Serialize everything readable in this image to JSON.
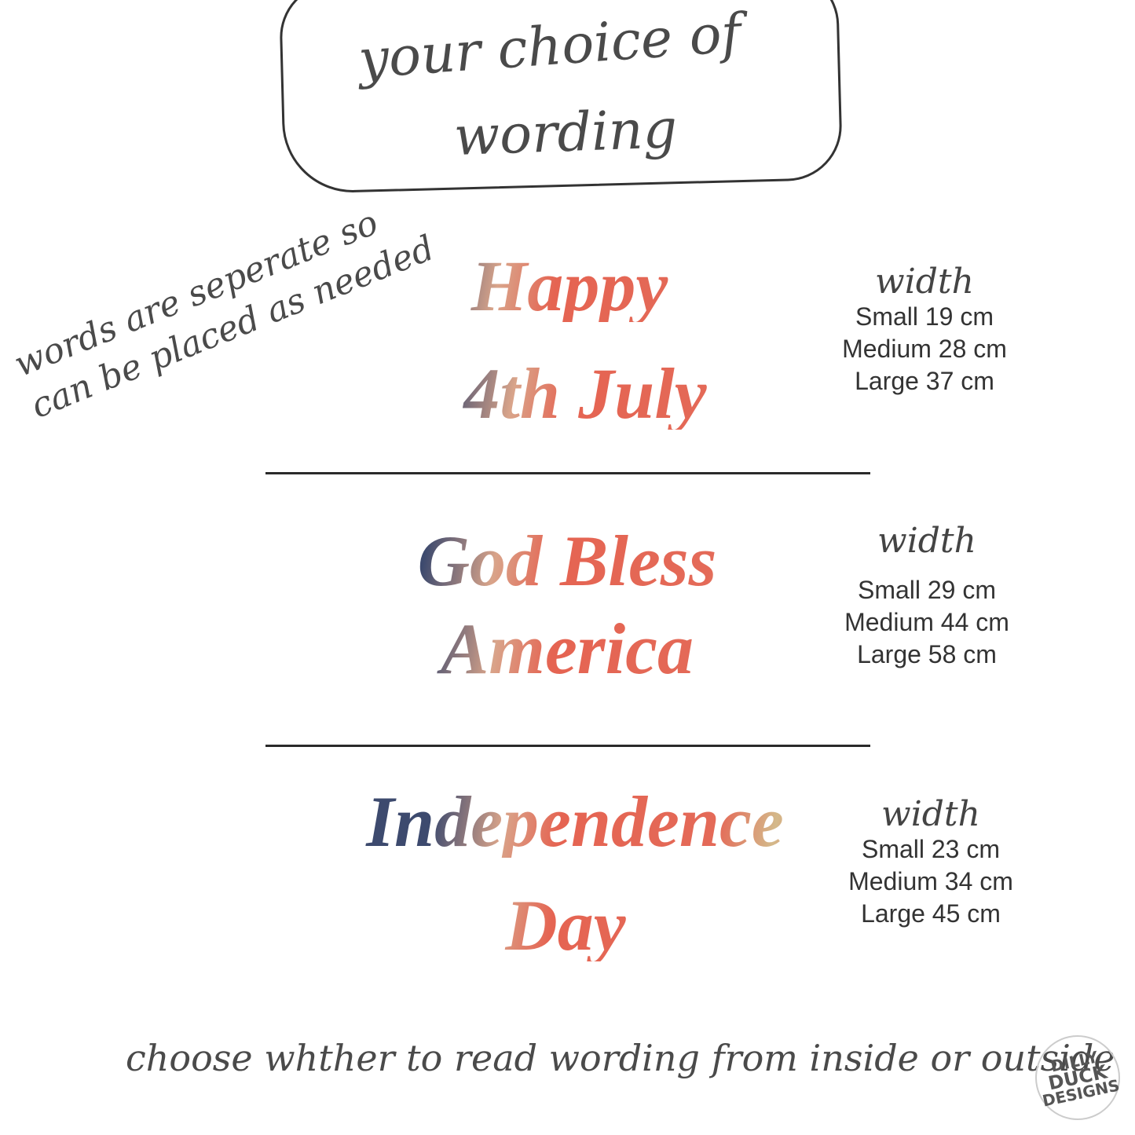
{
  "header": {
    "title_line1": "your choice of",
    "title_line2": "wording"
  },
  "side_note": {
    "line1": "words are seperate so",
    "line2": "can be placed as needed"
  },
  "designs": [
    {
      "line1": "Happy",
      "line2": "4th July",
      "width_label": "width",
      "sizes": [
        "Small 19 cm",
        "Medium 28 cm",
        "Large 37 cm"
      ]
    },
    {
      "line1": "God Bless",
      "line2": "America",
      "width_label": "width",
      "sizes": [
        "Small 29 cm",
        "Medium 44 cm",
        "Large 58 cm"
      ]
    },
    {
      "line1": "Independence",
      "line2": "Day",
      "width_label": "width",
      "sizes": [
        "Small 23 cm",
        "Medium 34 cm",
        "Large 45 cm"
      ]
    }
  ],
  "footer": {
    "note": "choose whther to read wording from inside or outside"
  },
  "logo": {
    "text": "Dilly Duck Designs"
  },
  "colors": {
    "navy": "#3d4a6e",
    "coral": "#e56452",
    "gold": "#d4b98a",
    "ink": "#4a4a4a"
  }
}
